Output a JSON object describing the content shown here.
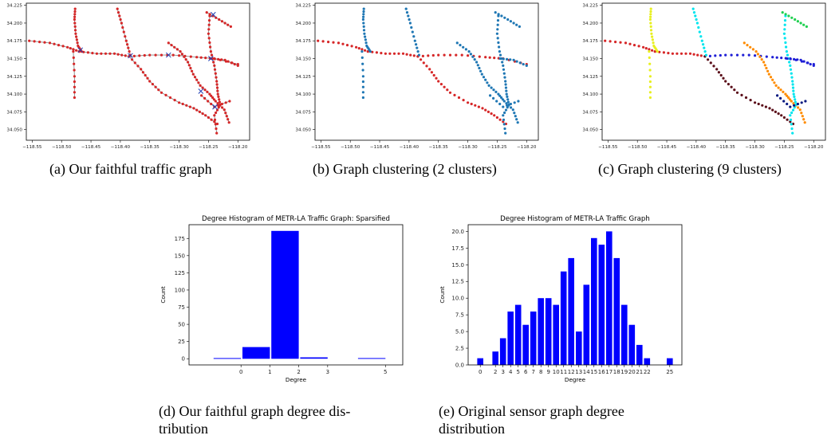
{
  "figure": {
    "captions": {
      "a": "(a) Our faithful traffic graph",
      "b": "(b) Graph clustering (2 clusters)",
      "c": "(c) Graph clustering (9 clusters)",
      "d_line1": "(d) Our faithful graph degree dis-",
      "d_line2": "tribution",
      "e_line1": "(e) Original sensor graph degree",
      "e_line2": "distribution"
    }
  },
  "maps": {
    "x_ticks": [
      "-118.55",
      "-118.50",
      "-118.45",
      "-118.40",
      "-118.35",
      "-118.30",
      "-118.25",
      "-118.20"
    ],
    "y_ticks": [
      "34.225",
      "34.200",
      "34.175",
      "34.150",
      "34.125",
      "34.100",
      "34.075",
      "34.050"
    ],
    "xlim": [
      -118.56,
      -118.18
    ],
    "ylim": [
      34.035,
      34.228
    ],
    "colors": {
      "edge": "#888888",
      "node": "#d62728",
      "cluster2_other": "#1f77b4",
      "hub_marker": "#1f3fb4"
    },
    "cluster9_colors": [
      "#d62728",
      "#1f1fd6",
      "#00e5ee",
      "#ff8c00",
      "#e8f020",
      "#5b0f1a",
      "#20d050",
      "#0a1a80",
      "#ff4500"
    ]
  },
  "chart_data": [
    {
      "type": "bar",
      "title": "Degree Histogram of METR-LA Traffic Graph: Sparsified",
      "xlabel": "Degree",
      "ylabel": "Count",
      "x": [
        0,
        1,
        2,
        3,
        5
      ],
      "values": [
        1,
        17,
        186,
        2,
        1
      ],
      "x_ticks": [
        0,
        1,
        2,
        3,
        5
      ],
      "y_ticks": [
        0,
        25,
        50,
        75,
        100,
        125,
        150,
        175
      ],
      "ylim": [
        -9,
        195
      ],
      "color": "#0000ff"
    },
    {
      "type": "bar",
      "title": "Degree Histogram of METR-LA Traffic Graph",
      "xlabel": "Degree",
      "ylabel": "Count",
      "x": [
        0,
        2,
        3,
        4,
        5,
        6,
        7,
        8,
        9,
        10,
        11,
        12,
        13,
        14,
        15,
        16,
        17,
        18,
        19,
        20,
        21,
        22,
        25
      ],
      "values": [
        1,
        2,
        4,
        8,
        9,
        6,
        8,
        10,
        10,
        9,
        14,
        16,
        5,
        12,
        19,
        18,
        20,
        16,
        9,
        6,
        3,
        1,
        1
      ],
      "x_ticks": [
        0,
        2,
        3,
        4,
        5,
        6,
        7,
        8,
        9,
        10,
        11,
        12,
        13,
        14,
        15,
        16,
        17,
        18,
        19,
        20,
        21,
        22,
        25
      ],
      "y_ticks": [
        0.0,
        2.5,
        5.0,
        7.5,
        10.0,
        12.5,
        15.0,
        17.5,
        20.0
      ],
      "ylim": [
        0,
        21
      ],
      "color": "#0000ff"
    }
  ]
}
